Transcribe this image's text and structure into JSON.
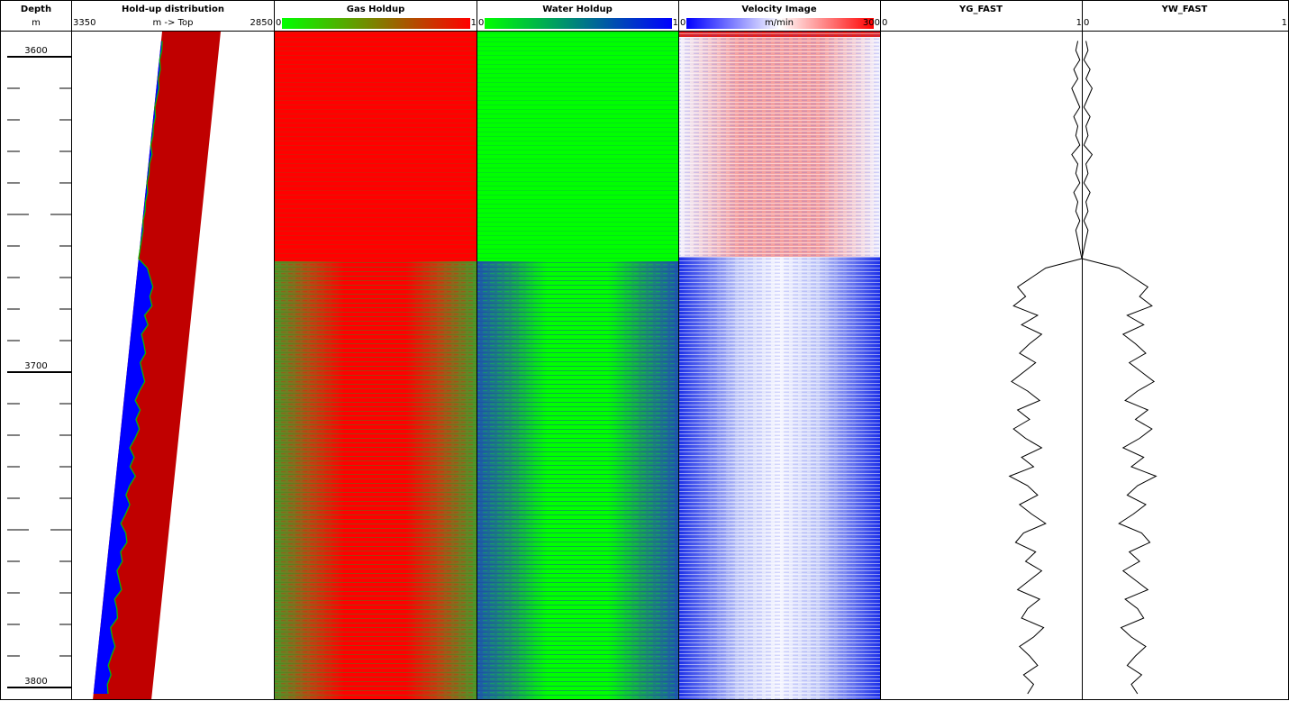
{
  "depth_track": {
    "title": "Depth",
    "unit": "m",
    "ylim": [
      3592,
      3804
    ],
    "yticks": [
      3600,
      3700,
      3800
    ],
    "mid_ticks": [
      3650,
      3750
    ],
    "minor_ticks": [
      3610,
      3620,
      3630,
      3640,
      3660,
      3670,
      3680,
      3690,
      3710,
      3720,
      3730,
      3740,
      3760,
      3770,
      3780,
      3790
    ]
  },
  "holdup_track": {
    "title": "Hold-up distribution",
    "unit": "m -> Top",
    "xlim": [
      3350,
      2850
    ],
    "xticks": [
      3350,
      2850
    ]
  },
  "gas_track": {
    "title": "Gas Holdup",
    "xlim": [
      0,
      1
    ],
    "xticks": [
      0,
      1
    ]
  },
  "water_track": {
    "title": "Water Holdup",
    "xlim": [
      0,
      1
    ],
    "xticks": [
      0,
      1
    ]
  },
  "velocity_track": {
    "title": "Velocity Image",
    "unit": "m/min",
    "xlim": [
      0,
      300
    ],
    "xticks": [
      0,
      300
    ]
  },
  "chart_data": {
    "type": "line",
    "x": [
      3595,
      3598,
      3601,
      3604,
      3607,
      3610,
      3613,
      3616,
      3619,
      3622,
      3625,
      3628,
      3631,
      3634,
      3637,
      3640,
      3643,
      3646,
      3649,
      3652,
      3655,
      3658,
      3661,
      3664,
      3667,
      3670,
      3673,
      3676,
      3679,
      3682,
      3685,
      3688,
      3691,
      3694,
      3697,
      3700,
      3703,
      3706,
      3709,
      3712,
      3715,
      3718,
      3721,
      3724,
      3727,
      3730,
      3733,
      3736,
      3739,
      3742,
      3745,
      3748,
      3751,
      3754,
      3757,
      3760,
      3763,
      3766,
      3769,
      3772,
      3775,
      3778,
      3781,
      3784,
      3787,
      3790,
      3793,
      3796,
      3799,
      3802
    ],
    "series": [
      {
        "name": "YG_FAST",
        "color": "#000000",
        "xlim": [
          0,
          1
        ],
        "xticks": [
          0,
          1
        ],
        "values": [
          0.98,
          0.97,
          0.99,
          0.96,
          0.98,
          0.95,
          0.97,
          0.99,
          0.96,
          0.98,
          0.97,
          0.99,
          0.95,
          0.98,
          0.97,
          0.99,
          0.96,
          0.98,
          0.97,
          0.99,
          0.97,
          0.98,
          0.99,
          1.0,
          0.82,
          0.75,
          0.68,
          0.72,
          0.66,
          0.78,
          0.7,
          0.8,
          0.74,
          0.69,
          0.77,
          0.71,
          0.65,
          0.73,
          0.79,
          0.68,
          0.74,
          0.66,
          0.72,
          0.8,
          0.7,
          0.76,
          0.64,
          0.73,
          0.78,
          0.69,
          0.75,
          0.82,
          0.71,
          0.67,
          0.77,
          0.72,
          0.8,
          0.74,
          0.68,
          0.79,
          0.73,
          0.7,
          0.81,
          0.76,
          0.69,
          0.74,
          0.78,
          0.71,
          0.76,
          0.73
        ]
      },
      {
        "name": "YW_FAST",
        "color": "#000000",
        "xlim": [
          0,
          1
        ],
        "xticks": [
          0,
          1
        ],
        "values": [
          0.02,
          0.03,
          0.01,
          0.04,
          0.02,
          0.05,
          0.03,
          0.01,
          0.04,
          0.02,
          0.03,
          0.01,
          0.05,
          0.02,
          0.03,
          0.01,
          0.04,
          0.02,
          0.03,
          0.01,
          0.03,
          0.02,
          0.01,
          0.0,
          0.18,
          0.25,
          0.32,
          0.28,
          0.34,
          0.22,
          0.3,
          0.2,
          0.26,
          0.31,
          0.23,
          0.29,
          0.35,
          0.27,
          0.21,
          0.32,
          0.26,
          0.34,
          0.28,
          0.2,
          0.3,
          0.24,
          0.36,
          0.27,
          0.22,
          0.31,
          0.25,
          0.18,
          0.29,
          0.33,
          0.23,
          0.28,
          0.2,
          0.26,
          0.32,
          0.21,
          0.27,
          0.3,
          0.19,
          0.24,
          0.31,
          0.26,
          0.22,
          0.29,
          0.24,
          0.27
        ]
      }
    ]
  }
}
